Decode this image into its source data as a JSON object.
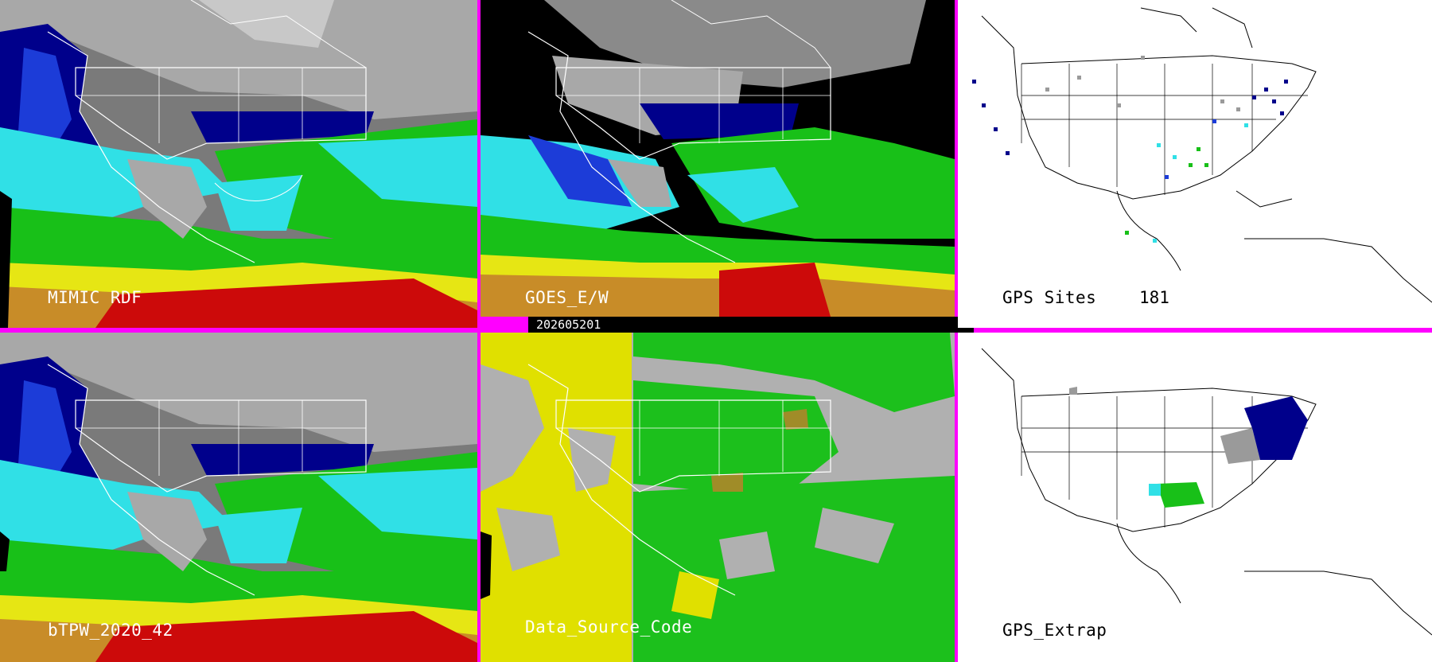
{
  "timestamp": "202605201",
  "panels": [
    {
      "id": "mimic",
      "label": "MIMIC RDF"
    },
    {
      "id": "goes",
      "label": "GOES_E/W"
    },
    {
      "id": "gps-sites",
      "label": "GPS Sites",
      "count": "181"
    },
    {
      "id": "btpw",
      "label": "bTPW_2020_42"
    },
    {
      "id": "dsc",
      "label": "Data_Source_Code"
    },
    {
      "id": "gps-extrap",
      "label": "GPS_Extrap"
    }
  ],
  "colors": {
    "border": "#ff00ff",
    "tpw_dry_gray": "#9a9a9a",
    "tpw_navy": "#00008b",
    "tpw_blue": "#1c3cd8",
    "tpw_cyan": "#30e0e6",
    "tpw_green": "#18c018",
    "tpw_yellow": "#e6e614",
    "tpw_orange": "#c88c28",
    "tpw_red": "#cc0a0a",
    "dsc_gray": "#b0b0b0",
    "dsc_yellow": "#e0e000",
    "dsc_green": "#1cc01c",
    "dsc_olive": "#a08c28"
  }
}
